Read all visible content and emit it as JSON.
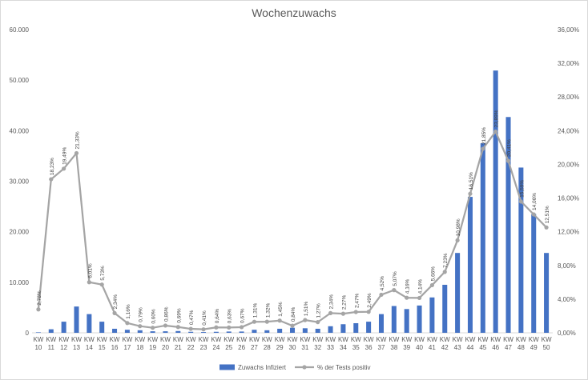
{
  "chart_data": {
    "type": "bar",
    "title": "Wochenzuwachs",
    "categories": [
      "KW 10",
      "KW 11",
      "KW 12",
      "KW 13",
      "KW 14",
      "KW 15",
      "KW 16",
      "KW 17",
      "KW 18",
      "KW 19",
      "KW 20",
      "KW 21",
      "KW 22",
      "KW 23",
      "KW 24",
      "KW 25",
      "KW 26",
      "KW 27",
      "KW 28",
      "KW 29",
      "KW 30",
      "KW 31",
      "KW 32",
      "KW 33",
      "KW 34",
      "KW 35",
      "KW 36",
      "KW 37",
      "KW 38",
      "KW 39",
      "KW 40",
      "KW 41",
      "KW 42",
      "KW 43",
      "KW 44",
      "KW 45",
      "KW 46",
      "KW 47",
      "KW 48",
      "KW 49",
      "KW 50"
    ],
    "series": [
      {
        "name": "Zuwachs Infiziert",
        "type": "bar",
        "axis": "left",
        "color": "#4472C4",
        "values": [
          100,
          700,
          2200,
          5200,
          3700,
          2200,
          800,
          600,
          500,
          300,
          300,
          350,
          200,
          150,
          200,
          250,
          250,
          600,
          500,
          800,
          1000,
          900,
          800,
          1300,
          1700,
          1900,
          2200,
          3700,
          5300,
          4700,
          5400,
          7000,
          9500,
          15800,
          26900,
          37500,
          51900,
          42700,
          32700,
          23500,
          15800
        ]
      },
      {
        "name": "% der Tests positiv",
        "type": "line",
        "axis": "right",
        "color": "#A5A5A5",
        "values": [
          2.78,
          18.23,
          19.49,
          21.33,
          6.01,
          5.73,
          2.34,
          1.16,
          0.79,
          0.6,
          0.86,
          0.69,
          0.47,
          0.41,
          0.64,
          0.63,
          0.67,
          1.31,
          1.32,
          1.45,
          0.84,
          1.51,
          1.27,
          2.34,
          2.27,
          2.47,
          2.49,
          4.52,
          5.07,
          4.16,
          4.14,
          5.66,
          7.23,
          10.98,
          16.51,
          21.85,
          23.89,
          20.41,
          15.59,
          14.06,
          12.51
        ],
        "labels": [
          "2,78%",
          "18,23%",
          "19,49%",
          "21,33%",
          "6,01%",
          "5,73%",
          "2,34%",
          "1,16%",
          "0,79%",
          "0,60%",
          "0,86%",
          "0,69%",
          "0,47%",
          "0,41%",
          "0,64%",
          "0,63%",
          "0,67%",
          "1,31%",
          "1,32%",
          "1,45%",
          "0,84%",
          "1,51%",
          "1,27%",
          "2,34%",
          "2,27%",
          "2,47%",
          "2,49%",
          "4,52%",
          "5,07%",
          "4,16%",
          "4,14%",
          "5,66%",
          "7,23%",
          "10,98%",
          "16,51%",
          "21,85%",
          "23,89%",
          "20,41%",
          "15,59%",
          "14,06%",
          "12,51%"
        ]
      }
    ],
    "y_left": {
      "ylim": [
        0,
        60000
      ],
      "ticks": [
        0,
        10000,
        20000,
        30000,
        40000,
        50000,
        60000
      ],
      "tick_labels": [
        "0",
        "10.000",
        "20.000",
        "30.000",
        "40.000",
        "50.000",
        "60.000"
      ]
    },
    "y_right": {
      "ylim": [
        0,
        36
      ],
      "ticks": [
        0,
        4,
        8,
        12,
        16,
        20,
        24,
        28,
        32,
        36
      ],
      "tick_labels": [
        "0,00%",
        "4,00%",
        "8,00%",
        "12,00%",
        "16,00%",
        "20,00%",
        "24,00%",
        "28,00%",
        "32,00%",
        "36,00%"
      ]
    },
    "grid": false,
    "legend": "bottom"
  }
}
